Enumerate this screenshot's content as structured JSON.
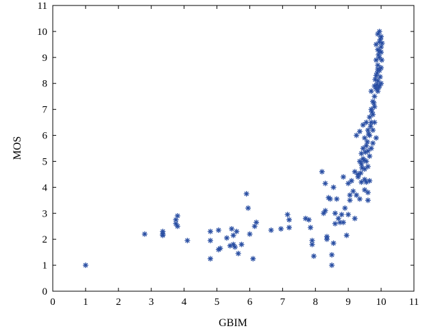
{
  "chart_data": {
    "type": "scatter",
    "title": "",
    "xlabel": "GBIM",
    "ylabel": "MOS",
    "xlim": [
      0,
      11
    ],
    "ylim": [
      0,
      11
    ],
    "xticks": [
      "0",
      "1",
      "2",
      "3",
      "4",
      "5",
      "6",
      "7",
      "8",
      "9",
      "10",
      "11"
    ],
    "yticks": [
      "0",
      "1",
      "2",
      "3",
      "4",
      "5",
      "6",
      "7",
      "8",
      "9",
      "10",
      "11"
    ],
    "grid": false,
    "legend": "none",
    "marker": "asterisk",
    "color": "#2a4fa3",
    "series": [
      {
        "points": [
          [
            1.0,
            1.0
          ],
          [
            2.8,
            2.2
          ],
          [
            3.35,
            2.2
          ],
          [
            3.35,
            2.3
          ],
          [
            3.35,
            2.15
          ],
          [
            3.75,
            2.6
          ],
          [
            3.8,
            2.9
          ],
          [
            3.75,
            2.75
          ],
          [
            3.8,
            2.5
          ],
          [
            4.1,
            1.95
          ],
          [
            4.8,
            2.3
          ],
          [
            4.8,
            1.95
          ],
          [
            4.8,
            1.25
          ],
          [
            5.05,
            1.6
          ],
          [
            5.05,
            2.35
          ],
          [
            5.1,
            1.65
          ],
          [
            5.3,
            2.05
          ],
          [
            5.4,
            1.75
          ],
          [
            5.45,
            2.4
          ],
          [
            5.5,
            1.8
          ],
          [
            5.55,
            1.7
          ],
          [
            5.5,
            2.15
          ],
          [
            5.6,
            2.3
          ],
          [
            5.65,
            1.45
          ],
          [
            5.75,
            1.8
          ],
          [
            5.9,
            3.75
          ],
          [
            5.95,
            3.2
          ],
          [
            6.0,
            2.2
          ],
          [
            6.1,
            1.25
          ],
          [
            6.15,
            2.5
          ],
          [
            6.2,
            2.65
          ],
          [
            6.65,
            2.35
          ],
          [
            6.95,
            2.4
          ],
          [
            7.15,
            2.95
          ],
          [
            7.2,
            2.45
          ],
          [
            7.2,
            2.75
          ],
          [
            7.7,
            2.8
          ],
          [
            7.8,
            2.75
          ],
          [
            7.85,
            2.45
          ],
          [
            7.9,
            1.95
          ],
          [
            7.95,
            1.35
          ],
          [
            7.9,
            1.8
          ],
          [
            8.2,
            4.6
          ],
          [
            8.25,
            3.0
          ],
          [
            8.3,
            3.1
          ],
          [
            8.3,
            4.15
          ],
          [
            8.35,
            2.1
          ],
          [
            8.35,
            2.0
          ],
          [
            8.4,
            3.6
          ],
          [
            8.45,
            3.55
          ],
          [
            8.5,
            1.4
          ],
          [
            8.5,
            1.0
          ],
          [
            8.55,
            1.85
          ],
          [
            8.55,
            4.0
          ],
          [
            8.6,
            3.0
          ],
          [
            8.6,
            2.6
          ],
          [
            8.65,
            3.55
          ],
          [
            8.7,
            2.8
          ],
          [
            8.75,
            2.65
          ],
          [
            8.8,
            2.95
          ],
          [
            8.85,
            2.65
          ],
          [
            8.85,
            4.4
          ],
          [
            8.9,
            3.2
          ],
          [
            8.95,
            2.15
          ],
          [
            9.0,
            4.15
          ],
          [
            9.0,
            2.95
          ],
          [
            9.05,
            3.7
          ],
          [
            9.05,
            3.5
          ],
          [
            9.1,
            4.25
          ],
          [
            9.15,
            3.85
          ],
          [
            9.2,
            4.6
          ],
          [
            9.2,
            2.8
          ],
          [
            9.25,
            3.7
          ],
          [
            9.3,
            4.5
          ],
          [
            9.25,
            6.0
          ],
          [
            9.3,
            4.4
          ],
          [
            9.35,
            6.15
          ],
          [
            9.35,
            5.0
          ],
          [
            9.35,
            3.55
          ],
          [
            9.4,
            5.3
          ],
          [
            9.4,
            4.9
          ],
          [
            9.4,
            4.2
          ],
          [
            9.45,
            6.4
          ],
          [
            9.45,
            5.5
          ],
          [
            9.45,
            5.1
          ],
          [
            9.5,
            5.9
          ],
          [
            9.5,
            4.7
          ],
          [
            9.5,
            4.3
          ],
          [
            9.5,
            3.9
          ],
          [
            9.55,
            6.5
          ],
          [
            9.55,
            5.6
          ],
          [
            9.55,
            5.0
          ],
          [
            9.55,
            4.2
          ],
          [
            9.6,
            6.2
          ],
          [
            9.6,
            5.4
          ],
          [
            9.6,
            4.8
          ],
          [
            9.6,
            3.8
          ],
          [
            9.6,
            3.5
          ],
          [
            9.65,
            6.7
          ],
          [
            9.65,
            6.0
          ],
          [
            9.65,
            5.2
          ],
          [
            9.65,
            4.25
          ],
          [
            9.7,
            7.7
          ],
          [
            9.7,
            7.0
          ],
          [
            9.7,
            6.5
          ],
          [
            9.7,
            5.5
          ],
          [
            9.75,
            7.3
          ],
          [
            9.75,
            6.8
          ],
          [
            9.75,
            6.2
          ],
          [
            9.75,
            5.7
          ],
          [
            9.8,
            7.9
          ],
          [
            9.8,
            7.5
          ],
          [
            9.8,
            7.1
          ],
          [
            9.8,
            6.5
          ],
          [
            9.85,
            8.3
          ],
          [
            9.85,
            7.8
          ],
          [
            9.85,
            5.9
          ],
          [
            9.85,
            8.9
          ],
          [
            9.85,
            9.5
          ],
          [
            9.9,
            9.9
          ],
          [
            9.9,
            9.3
          ],
          [
            9.9,
            8.7
          ],
          [
            9.9,
            8.1
          ],
          [
            9.9,
            7.7
          ],
          [
            9.95,
            10.0
          ],
          [
            9.95,
            9.6
          ],
          [
            9.95,
            9.0
          ],
          [
            9.95,
            8.5
          ],
          [
            9.95,
            7.9
          ],
          [
            10.0,
            9.8
          ],
          [
            10.0,
            9.2
          ],
          [
            10.0,
            8.6
          ],
          [
            10.0,
            8.0
          ],
          [
            10.0,
            9.4
          ],
          [
            9.88,
            8.4
          ],
          [
            9.92,
            9.1
          ],
          [
            9.97,
            8.25
          ],
          [
            9.93,
            7.85
          ],
          [
            9.98,
            9.7
          ],
          [
            10.02,
            8.9
          ],
          [
            9.87,
            7.95
          ],
          [
            9.82,
            8.15
          ],
          [
            9.9,
            8.55
          ],
          [
            9.95,
            9.25
          ],
          [
            10.03,
            9.55
          ],
          [
            9.78,
            7.25
          ],
          [
            9.72,
            6.9
          ],
          [
            9.68,
            6.35
          ],
          [
            9.62,
            6.05
          ],
          [
            9.58,
            5.75
          ],
          [
            9.52,
            5.35
          ],
          [
            9.48,
            5.05
          ],
          [
            9.42,
            4.75
          ],
          [
            9.38,
            4.55
          ]
        ]
      }
    ]
  }
}
